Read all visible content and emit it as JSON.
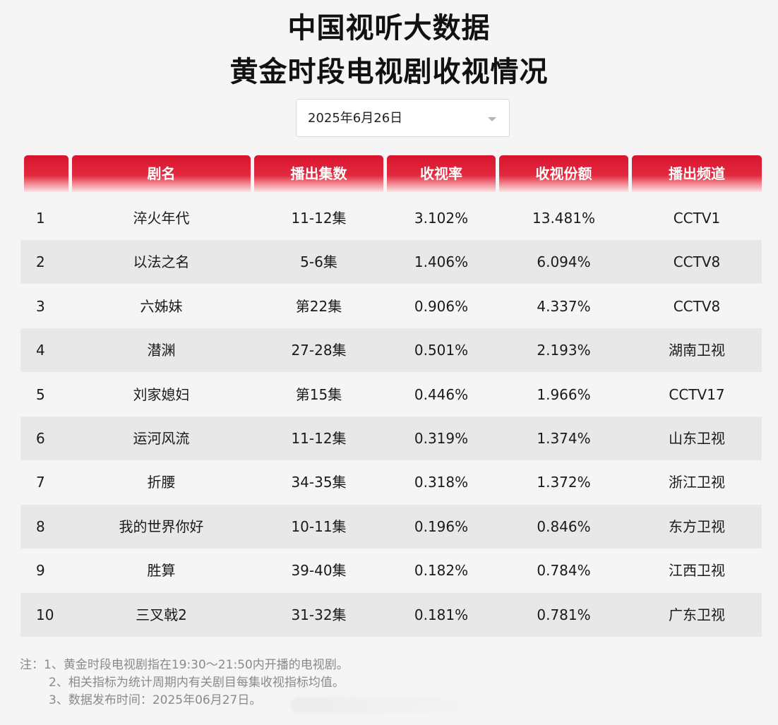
{
  "header": {
    "title_line1": "中国视听大数据",
    "title_line2": "黄金时段电视剧收视情况"
  },
  "date_select": {
    "value": "2025年6月26日",
    "icon": "chevron-down-icon"
  },
  "table": {
    "columns": [
      "",
      "剧名",
      "播出集数",
      "收视率",
      "收视份额",
      "播出频道"
    ],
    "rows": [
      {
        "rank": "1",
        "name": "淬火年代",
        "episodes": "11-12集",
        "rating": "3.102%",
        "share": "13.481%",
        "channel": "CCTV1"
      },
      {
        "rank": "2",
        "name": "以法之名",
        "episodes": "5-6集",
        "rating": "1.406%",
        "share": "6.094%",
        "channel": "CCTV8"
      },
      {
        "rank": "3",
        "name": "六姊妹",
        "episodes": "第22集",
        "rating": "0.906%",
        "share": "4.337%",
        "channel": "CCTV8"
      },
      {
        "rank": "4",
        "name": "潜渊",
        "episodes": "27-28集",
        "rating": "0.501%",
        "share": "2.193%",
        "channel": "湖南卫视"
      },
      {
        "rank": "5",
        "name": "刘家媳妇",
        "episodes": "第15集",
        "rating": "0.446%",
        "share": "1.966%",
        "channel": "CCTV17"
      },
      {
        "rank": "6",
        "name": "运河风流",
        "episodes": "11-12集",
        "rating": "0.319%",
        "share": "1.374%",
        "channel": "山东卫视"
      },
      {
        "rank": "7",
        "name": "折腰",
        "episodes": "34-35集",
        "rating": "0.318%",
        "share": "1.372%",
        "channel": "浙江卫视"
      },
      {
        "rank": "8",
        "name": "我的世界你好",
        "episodes": "10-11集",
        "rating": "0.196%",
        "share": "0.846%",
        "channel": "东方卫视"
      },
      {
        "rank": "9",
        "name": "胜算",
        "episodes": "39-40集",
        "rating": "0.182%",
        "share": "0.784%",
        "channel": "江西卫视"
      },
      {
        "rank": "10",
        "name": "三叉戟2",
        "episodes": "31-32集",
        "rating": "0.181%",
        "share": "0.781%",
        "channel": "广东卫视"
      }
    ]
  },
  "notes": {
    "line1": "注：1、黄金时段电视剧指在19:30～21:50内开播的电视剧。",
    "line2": "2、相关指标为统计周期内有关剧目每集收视指标均值。",
    "line3": "3、数据发布时间：2025年06月27日。"
  },
  "colors": {
    "header_red": "#d9142e",
    "row_shade": "#e8e8e8",
    "background": "#f5f5f5"
  }
}
